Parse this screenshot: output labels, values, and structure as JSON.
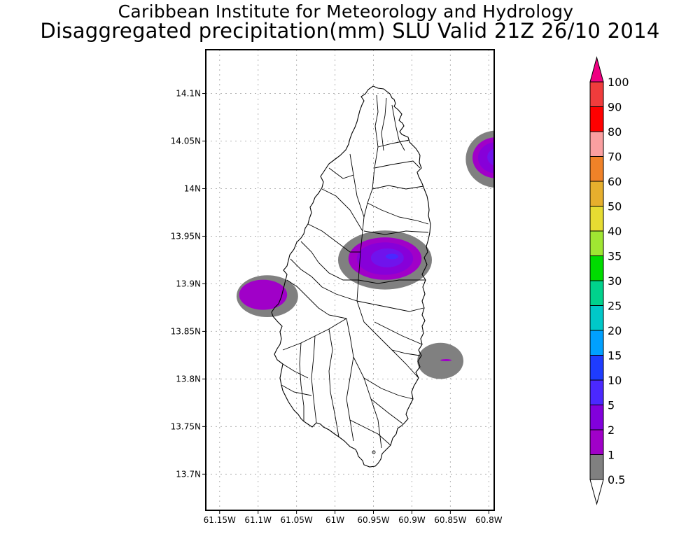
{
  "header": {
    "institution": "Caribbean Institute for Meteorology and Hydrology",
    "title": "Disaggregated precipitation(mm) SLU Valid 21Z 26/10 2014"
  },
  "map": {
    "region": "Saint Lucia",
    "lon_range": [
      -61.168,
      -60.793
    ],
    "lat_range": [
      13.662,
      14.146
    ],
    "x_ticks": [
      {
        "value": -61.15,
        "label": "61.15W"
      },
      {
        "value": -61.1,
        "label": "61.1W"
      },
      {
        "value": -61.05,
        "label": "61.05W"
      },
      {
        "value": -61.0,
        "label": "61W"
      },
      {
        "value": -60.95,
        "label": "60.95W"
      },
      {
        "value": -60.9,
        "label": "60.9W"
      },
      {
        "value": -60.85,
        "label": "60.85W"
      },
      {
        "value": -60.8,
        "label": "60.8W"
      }
    ],
    "y_ticks": [
      {
        "value": 14.1,
        "label": "14.1N"
      },
      {
        "value": 14.05,
        "label": "14.05N"
      },
      {
        "value": 14.0,
        "label": "14N"
      },
      {
        "value": 13.95,
        "label": "13.95N"
      },
      {
        "value": 13.9,
        "label": "13.9N"
      },
      {
        "value": 13.85,
        "label": "13.85N"
      },
      {
        "value": 13.8,
        "label": "13.8N"
      },
      {
        "value": 13.75,
        "label": "13.75N"
      },
      {
        "value": 13.7,
        "label": "13.7N"
      }
    ],
    "grid": true,
    "precip_cells": [
      {
        "name": "central",
        "lon": -60.935,
        "lat": 13.925,
        "rlon": 0.061,
        "rlat": 0.031,
        "max_mm": 10
      },
      {
        "name": "west",
        "lon": -61.088,
        "lat": 13.887,
        "rlon": 0.04,
        "rlat": 0.022,
        "max_mm": 2
      },
      {
        "name": "southeast",
        "lon": -60.863,
        "lat": 13.819,
        "rlon": 0.03,
        "rlat": 0.019,
        "max_mm": 2
      },
      {
        "name": "northeast",
        "lon": -60.79,
        "lat": 14.031,
        "rlon": 0.04,
        "rlat": 0.03,
        "max_mm": 5
      }
    ]
  },
  "colorbar": {
    "levels": [
      "0.5",
      "1",
      "2",
      "5",
      "10",
      "15",
      "20",
      "25",
      "30",
      "35",
      "40",
      "50",
      "60",
      "70",
      "80",
      "90",
      "100"
    ],
    "colors": [
      "#808080",
      "#a000c8",
      "#8200dc",
      "#4b28ff",
      "#1e3cff",
      "#00a0ff",
      "#00c8c8",
      "#00d28c",
      "#00dc00",
      "#a0e632",
      "#e6dc32",
      "#e6af2d",
      "#f08228",
      "#fa9fa0",
      "#ff0000",
      "#f03c3c"
    ],
    "under_color": "#ffffff",
    "over_color": "#f00082"
  }
}
